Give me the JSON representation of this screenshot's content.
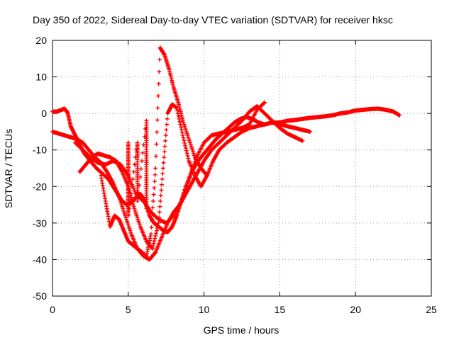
{
  "chart_data": {
    "type": "scatter",
    "title": "Day 350 of 2022, Sidereal Day-to-day VTEC variation (SDTVAR) for receiver hksc",
    "xlabel": "GPS time / hours",
    "ylabel": "SDTVAR / TECUs",
    "xlim": [
      0,
      25
    ],
    "ylim": [
      -50,
      20
    ],
    "x_ticks": [
      0,
      5,
      10,
      15,
      20,
      25
    ],
    "y_ticks": [
      -50,
      -40,
      -30,
      -20,
      -10,
      0,
      10,
      20
    ],
    "x_tick_labels": [
      "0",
      "5",
      "10",
      "15",
      "20",
      "25"
    ],
    "y_tick_labels": [
      "-50",
      "-40",
      "-30",
      "-20",
      "-10",
      "0",
      "10",
      "20"
    ],
    "grid": true,
    "grid_style": "dotted",
    "marker": "plus",
    "color": "#ff0000",
    "series": [
      {
        "x": [
          0.0,
          0.3,
          0.6,
          0.8,
          1.0,
          1.2,
          1.5,
          1.8,
          2.1,
          2.5,
          2.9,
          3.3,
          3.7,
          4.0,
          4.3,
          4.6,
          4.9,
          5.2,
          5.5,
          5.8,
          6.1,
          6.4,
          6.7,
          7.0,
          7.3,
          7.6,
          7.9,
          8.2,
          8.5,
          8.8,
          9.2,
          9.6,
          10.0,
          10.4,
          10.8,
          11.2,
          11.6,
          12.0,
          12.4,
          12.8,
          13.2,
          13.6,
          14.0,
          14.5,
          15.0,
          15.5,
          16.0,
          16.5,
          17.0,
          17.5,
          18.0,
          18.5,
          19.0,
          19.5,
          20.0,
          20.5,
          21.0,
          21.5,
          22.0,
          22.5,
          22.9
        ],
        "y": [
          0.5,
          0.5,
          1.0,
          1.3,
          0.2,
          -3.5,
          -6.0,
          -8.5,
          -11.0,
          -13.0,
          -15.0,
          -16.5,
          -18.0,
          -20.0,
          -22.0,
          -24.0,
          -25.0,
          -24.5,
          -23.0,
          -22.0,
          -24.0,
          -28.0,
          -30.0,
          -31.0,
          -32.0,
          -32.5,
          -31.0,
          -28.0,
          -24.0,
          -20.0,
          -16.0,
          -13.0,
          -11.0,
          -9.0,
          -7.0,
          -5.5,
          -4.0,
          -2.5,
          -1.5,
          -1.0,
          -1.5,
          -2.5,
          -3.0,
          -2.5,
          -2.5,
          -2.0,
          -1.8,
          -1.5,
          -1.2,
          -1.0,
          -0.8,
          -0.5,
          0.0,
          0.3,
          0.8,
          1.0,
          1.2,
          1.3,
          1.0,
          0.5,
          -0.5
        ]
      },
      {
        "x": [
          0.0,
          0.4,
          0.8,
          1.2,
          1.6,
          2.0,
          2.4,
          2.8,
          3.2,
          3.6,
          4.0,
          4.4,
          4.8,
          5.2,
          5.6,
          6.0,
          6.4,
          6.8,
          7.2,
          7.6,
          8.0,
          8.4,
          8.8,
          9.2,
          9.6,
          10.0,
          10.5,
          11.0,
          11.5,
          12.0,
          12.5,
          13.0,
          13.5,
          14.0,
          14.5,
          15.0,
          15.5,
          16.0,
          16.5
        ],
        "y": [
          -5.0,
          -5.5,
          -6.0,
          -6.5,
          -7.0,
          -8.0,
          -10.0,
          -12.0,
          -13.5,
          -16.0,
          -19.0,
          -23.0,
          -28.0,
          -33.0,
          -37.0,
          -39.0,
          -40.0,
          -38.0,
          -34.0,
          -30.0,
          -27.0,
          -25.0,
          -22.0,
          -19.0,
          -16.0,
          -13.0,
          -10.0,
          -8.0,
          -6.0,
          -4.0,
          -2.0,
          0.5,
          2.0,
          0.0,
          -2.0,
          -4.0,
          -5.5,
          -6.5,
          -7.5
        ]
      },
      {
        "x": [
          1.8,
          2.2,
          2.6,
          3.0,
          3.4,
          3.8,
          4.2,
          4.6,
          5.0,
          5.4,
          5.8,
          6.2,
          6.6,
          7.0,
          7.3,
          7.6,
          7.9,
          8.2,
          8.6,
          9.0,
          9.4,
          9.8,
          10.2,
          10.6,
          11.0,
          11.5,
          12.0,
          12.5,
          13.0,
          13.5,
          14.0,
          14.5,
          15.0,
          15.5,
          16.0,
          16.5,
          17.0
        ],
        "y": [
          -16.0,
          -14.0,
          -12.0,
          -11.0,
          -11.5,
          -12.0,
          -13.0,
          -16.0,
          -20.0,
          -26.0,
          -31.0,
          -35.0,
          -37.0,
          -30.0,
          -15.0,
          0.0,
          2.5,
          1.5,
          -6.0,
          -13.0,
          -17.0,
          -20.0,
          -17.0,
          -13.0,
          -10.0,
          -8.0,
          -6.5,
          -5.0,
          -4.0,
          -3.5,
          -3.0,
          -2.5,
          -3.0,
          -3.5,
          -4.0,
          -4.5,
          -5.0
        ]
      },
      {
        "x": [
          3.2,
          3.5,
          3.8,
          4.1,
          4.4,
          4.7,
          5.0,
          5.3,
          5.6,
          5.9,
          6.2,
          6.5,
          6.8,
          7.1,
          7.4,
          7.7,
          8.0,
          8.3,
          8.6,
          9.0,
          9.4,
          9.8,
          10.2
        ],
        "y": [
          -17.0,
          -24.0,
          -31.0,
          -28.0,
          -29.0,
          -32.0,
          -35.0,
          -36.0,
          -37.0,
          -38.0,
          -39.0,
          -33.0,
          -15.0,
          18.0,
          16.0,
          12.0,
          7.0,
          3.0,
          -2.0,
          -7.0,
          -12.0,
          -15.0,
          -17.0
        ]
      },
      {
        "x": [
          1.5,
          2.0,
          2.5,
          3.0,
          3.5,
          4.0,
          4.5,
          5.0,
          5.5,
          6.0,
          6.5,
          7.0,
          7.5,
          8.0,
          8.5,
          9.0,
          9.5,
          10.0,
          10.5,
          11.0,
          11.5,
          12.0,
          12.5,
          13.0,
          13.5,
          14.0
        ],
        "y": [
          -8.0,
          -10.0,
          -12.0,
          -13.5,
          -14.0,
          -13.0,
          -14.0,
          -17.0,
          -22.0,
          -24.0,
          -27.0,
          -29.0,
          -30.0,
          -28.0,
          -24.0,
          -18.0,
          -12.0,
          -8.0,
          -6.0,
          -5.5,
          -5.0,
          -4.5,
          -4.0,
          -3.0,
          1.0,
          3.0
        ]
      },
      {
        "x": [
          5.0,
          5.0,
          5.0,
          5.0,
          5.0,
          5.0,
          5.6,
          5.6,
          5.6,
          5.6,
          6.2,
          6.2,
          6.2,
          6.2,
          6.2
        ],
        "y": [
          -8.0,
          -12.0,
          -16.0,
          -20.0,
          -24.0,
          -28.0,
          -8.0,
          -12.0,
          -18.0,
          -24.0,
          -2.0,
          -8.0,
          -14.0,
          -20.0,
          -26.0
        ]
      }
    ]
  }
}
